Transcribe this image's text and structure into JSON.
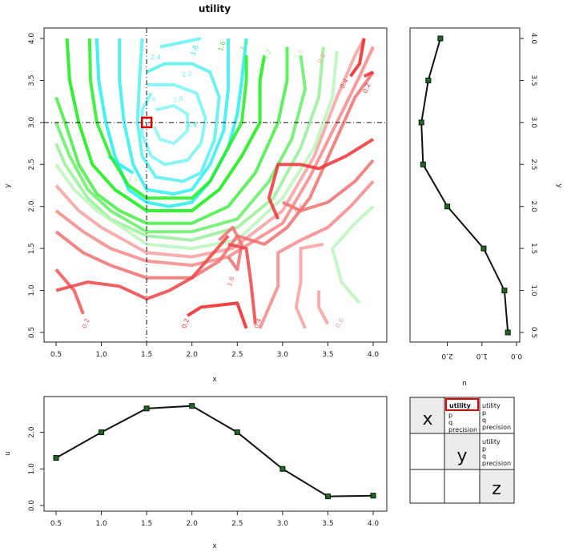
{
  "main_plot": {
    "title": "utility",
    "xlabel": "x",
    "ylabel": "y",
    "xticks": [
      "0.5",
      "1.0",
      "1.5",
      "2.0",
      "2.5",
      "3.0",
      "3.5",
      "4.0"
    ],
    "yticks": [
      "0.5",
      "1.0",
      "1.5",
      "2.0",
      "2.5",
      "3.0",
      "3.5",
      "4.0"
    ],
    "crosshair": {
      "x": 1.5,
      "y": 3.0
    },
    "contour_labels": [
      "0.2",
      "0.2",
      "0.2",
      "0.4",
      "0.4",
      "0.6",
      "0.6",
      "0.8",
      "1.0",
      "1.2",
      "1.4",
      "1.6",
      "1.8",
      "2.0",
      "2.2",
      "2.4",
      "2.6",
      "1.8",
      "1.6",
      "1.4"
    ]
  },
  "right_plot": {
    "xlabel": "u",
    "ylabel": "y",
    "xticks": [
      "2.0",
      "1.0",
      "0.0"
    ],
    "yticks": [
      "0.5",
      "1.0",
      "1.5",
      "2.0",
      "2.5",
      "3.0",
      "3.5",
      "4.0"
    ]
  },
  "bottom_plot": {
    "xlabel": "x",
    "ylabel": "u",
    "xticks": [
      "0.5",
      "1.0",
      "1.5",
      "2.0",
      "2.5",
      "3.0",
      "3.5",
      "4.0"
    ],
    "yticks": [
      "0.0",
      "1.0",
      "2.0"
    ]
  },
  "selector": {
    "x_label": "x",
    "y_label": "y",
    "z_label": "z",
    "cell_xy": {
      "selected": "utility",
      "items": [
        "p",
        "q",
        "precision"
      ]
    },
    "cell_xz": {
      "items": [
        "utility",
        "p",
        "q",
        "precision"
      ]
    },
    "cell_yz": {
      "items": [
        "utility",
        "p",
        "q",
        "precision"
      ]
    }
  },
  "chart_data": [
    {
      "type": "contour",
      "title": "utility",
      "xlabel": "x",
      "ylabel": "y",
      "xlim": [
        0.5,
        4.0
      ],
      "ylim": [
        0.5,
        4.0
      ],
      "crosshair": {
        "x": 1.5,
        "y": 3.0
      },
      "selected_point": {
        "x": 1.5,
        "y": 3.0
      },
      "contour_levels": [
        0.2,
        0.4,
        0.6,
        0.8,
        1.0,
        1.2,
        1.4,
        1.6,
        1.8,
        2.0,
        2.2,
        2.4,
        2.6
      ],
      "color_scale": {
        "low": "#ee2222",
        "mid": "#c8ffc0",
        "high": "#00ffff"
      }
    },
    {
      "type": "line",
      "xlabel": "u",
      "ylabel": "y",
      "xlim": [
        0.0,
        2.8
      ],
      "ylim": [
        0.5,
        4.0
      ],
      "x_axis_reversed": true,
      "points": [
        {
          "u": 0.25,
          "y": 0.5
        },
        {
          "u": 0.35,
          "y": 1.0
        },
        {
          "u": 0.95,
          "y": 1.5
        },
        {
          "u": 2.0,
          "y": 2.0
        },
        {
          "u": 2.7,
          "y": 2.5
        },
        {
          "u": 2.75,
          "y": 3.0
        },
        {
          "u": 2.55,
          "y": 3.5
        },
        {
          "u": 2.2,
          "y": 4.0
        }
      ]
    },
    {
      "type": "line",
      "xlabel": "x",
      "ylabel": "u",
      "xlim": [
        0.5,
        4.0
      ],
      "ylim": [
        0.0,
        2.8
      ],
      "points": [
        {
          "x": 0.5,
          "u": 1.3
        },
        {
          "x": 1.0,
          "u": 2.0
        },
        {
          "x": 1.5,
          "u": 2.65
        },
        {
          "x": 2.0,
          "u": 2.72
        },
        {
          "x": 2.5,
          "u": 2.0
        },
        {
          "x": 3.0,
          "u": 1.0
        },
        {
          "x": 3.5,
          "u": 0.25
        },
        {
          "x": 4.0,
          "u": 0.27
        }
      ]
    }
  ]
}
